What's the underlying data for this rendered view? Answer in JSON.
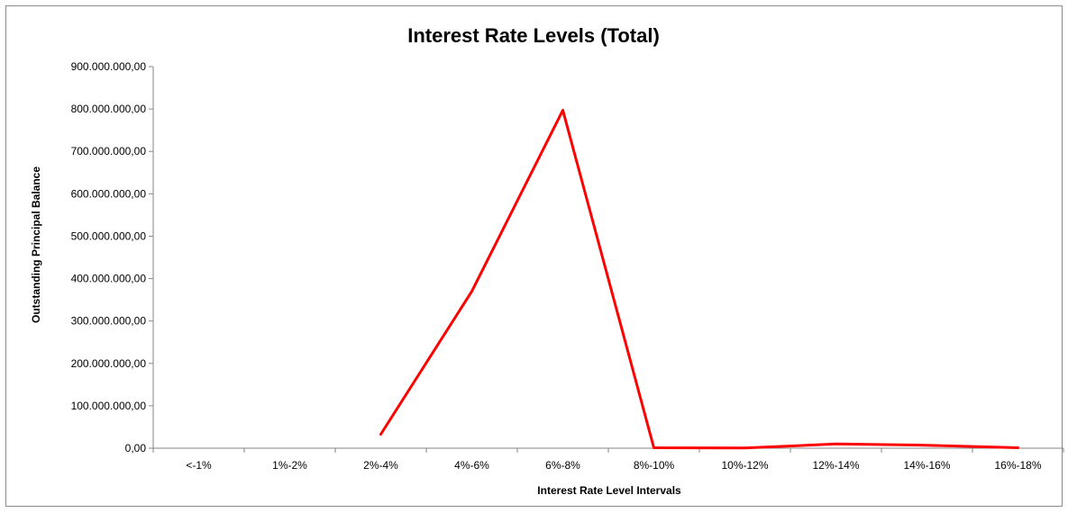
{
  "chart_data": {
    "type": "line",
    "title": "Interest Rate Levels (Total)",
    "xlabel": "Interest Rate Level Intervals",
    "ylabel": "Outstanding Principal Balance",
    "categories": [
      "<-1%",
      "1%-2%",
      "2%-4%",
      "4%-6%",
      "6%-8%",
      "8%-10%",
      "10%-12%",
      "12%-14%",
      "14%-16%",
      "16%-18%"
    ],
    "series": [
      {
        "color": "#ff0000",
        "values": [
          null,
          null,
          33000000,
          370000000,
          797000000,
          1000000,
          500000,
          10000000,
          7000000,
          1000000
        ]
      }
    ],
    "ylim": [
      0,
      900000000
    ],
    "ytick_values": [
      0,
      100000000,
      200000000,
      300000000,
      400000000,
      500000000,
      600000000,
      700000000,
      800000000,
      900000000
    ],
    "ytick_labels": [
      "0,00",
      "100.000.000,00",
      "200.000.000,00",
      "300.000.000,00",
      "400.000.000,00",
      "500.000.000,00",
      "600.000.000,00",
      "700.000.000,00",
      "800.000.000,00",
      "900.000.000,00"
    ],
    "grid": false,
    "legend": "none"
  }
}
